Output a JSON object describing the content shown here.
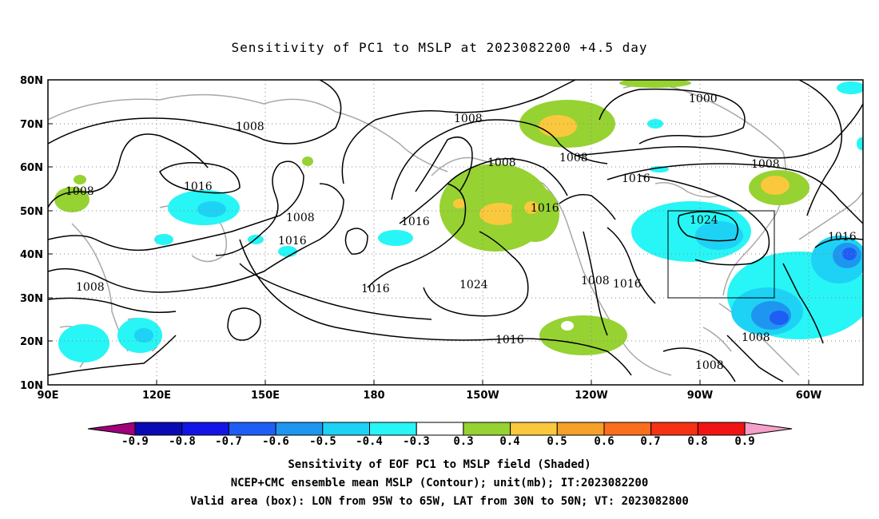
{
  "title": "Sensitivity of PC1 to MSLP at 2023082200 +4.5 day",
  "map": {
    "lat_ticks": [
      "80N",
      "70N",
      "60N",
      "50N",
      "40N",
      "30N",
      "20N",
      "10N"
    ],
    "lon_ticks": [
      "90E",
      "120E",
      "150E",
      "180",
      "150W",
      "120W",
      "90W",
      "60W"
    ],
    "valid_box": {
      "lon": [
        "95W",
        "65W"
      ],
      "lat": [
        "30N",
        "50N"
      ]
    },
    "contour_labels": [
      "1008",
      "1016",
      "1008",
      "1008",
      "1016",
      "1008",
      "1008",
      "1016",
      "1016",
      "1008",
      "1024",
      "1016",
      "1008",
      "1016",
      "1000",
      "1008",
      "1016",
      "1024",
      "1016",
      "1008",
      "1008",
      "1008",
      "1016"
    ]
  },
  "colorbar": {
    "labels": [
      "-0.9",
      "-0.8",
      "-0.7",
      "-0.6",
      "-0.5",
      "-0.4",
      "-0.3",
      "0.3",
      "0.4",
      "0.5",
      "0.6",
      "0.7",
      "0.8",
      "0.9"
    ],
    "colors": [
      "#a0007a",
      "#0a0ab4",
      "#1414e6",
      "#1e5ef5",
      "#1e96f0",
      "#1ed2f5",
      "#28f5f5",
      "#ffffff",
      "#96d232",
      "#fac83c",
      "#f5a028",
      "#fa6e1e",
      "#f53214",
      "#f01414",
      "#f5a0c8"
    ]
  },
  "caption": {
    "line1": "Sensitivity of EOF PC1 to MSLP field (Shaded)",
    "line2": "NCEP+CMC ensemble mean MSLP (Contour); unit(mb); IT:2023082200",
    "line3": "Valid area (box): LON from 95W to 65W, LAT from 30N to 50N; VT: 2023082800"
  }
}
